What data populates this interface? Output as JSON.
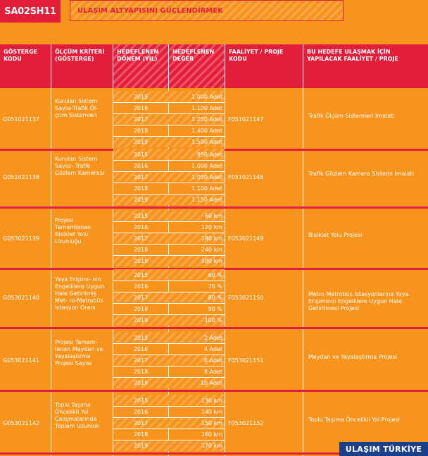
{
  "header": {
    "code": "SA02SH11",
    "title": "ULAŞIM ALTYAPISINI GÜÇLENDİRMEK"
  },
  "columns": {
    "col1": "GÖSTERGE KODU",
    "col2": "ÖLÇÜM KRİTERİ (GÖSTERGE)",
    "col3": "HEDEFLENEN DÖNEM (YIL)",
    "col4": "HEDEFLENEN DEĞER",
    "col5": "FAALİYET / PROJE KODU",
    "col6": "BU HEDEFE ULAŞMAK İÇİN YAPILACAK FAALİYET / PROJE"
  },
  "groups": [
    {
      "code": "G051021137",
      "criterion": "Kurulan Sistem Sayısı-Trafik Öl- çüm Sistemleri",
      "activity_code": "F051021147",
      "activity": "Trafik Ölçüm Sistemleri İmalatı",
      "rows": [
        {
          "year": "2015",
          "value": "1.000 Adet"
        },
        {
          "year": "2016",
          "value": "1.100 Adet"
        },
        {
          "year": "2017",
          "value": "1.250 Adet"
        },
        {
          "year": "2018",
          "value": "1.400 Adet"
        },
        {
          "year": "2019",
          "value": "1.500 Adet"
        }
      ]
    },
    {
      "code": "G051021138",
      "criterion": "Kurulan Sistem Sayısı- Trafik Gözlem Kamerası",
      "activity_code": "F051021148",
      "activity": "Trafik Gözlem Kamera Sistemi İmalatı",
      "rows": [
        {
          "year": "2015",
          "value": "950 Adet"
        },
        {
          "year": "2016",
          "value": "1.000 Adet"
        },
        {
          "year": "2017",
          "value": "1.050 Adet"
        },
        {
          "year": "2018",
          "value": "1.100 Adet"
        },
        {
          "year": "2019",
          "value": "1.150 Adet"
        }
      ]
    },
    {
      "code": "G053021139",
      "criterion": "Projesi Tamamlanan Bisiklet Yolu Uzunluğu",
      "activity_code": "F053021149",
      "activity": "Bisiklet Yolu Projesi",
      "rows": [
        {
          "year": "2015",
          "value": "60 km"
        },
        {
          "year": "2016",
          "value": "120 km"
        },
        {
          "year": "2017",
          "value": "180 km"
        },
        {
          "year": "2018",
          "value": "240 km"
        },
        {
          "year": "2019",
          "value": "300 km"
        }
      ]
    },
    {
      "code": "G053021140",
      "criterion": "Yaya Erişimi- nin Engellilere Uygun Hale Getirilmiş Met- ro-Metrobüs İstasyon Oranı",
      "activity_code": "F053021150",
      "activity": "Metro Metrobüs İstasyonlarına Yaya Erişiminin Engellilere Uygun Hale Getirilmesi Projesi",
      "rows": [
        {
          "year": "2015",
          "value": "60 %"
        },
        {
          "year": "2016",
          "value": "70 %"
        },
        {
          "year": "2017",
          "value": "80 %"
        },
        {
          "year": "2018",
          "value": "90 %"
        },
        {
          "year": "2019",
          "value": "100 %"
        }
      ]
    },
    {
      "code": "G053021141",
      "criterion": "Projesi Tamam- lanan Meydan ve Yayalaştırma Projesi Sayısı",
      "activity_code": "F053021151",
      "activity": "Meydan ve Yayalaştırma Projesi",
      "rows": [
        {
          "year": "2015",
          "value": "2 Adet"
        },
        {
          "year": "2016",
          "value": "4 Adet"
        },
        {
          "year": "2017",
          "value": "6 Adet"
        },
        {
          "year": "2018",
          "value": "8 Adet"
        },
        {
          "year": "2019",
          "value": "10 Adet"
        }
      ]
    },
    {
      "code": "G053021142",
      "criterion": "Toplu Taşıma Öncelikli Yol Çalışmalarında Toplam Uzunluk",
      "activity_code": "F053021152",
      "activity": "Toplu Taşıma Öncelikli Yol Projesi",
      "rows": [
        {
          "year": "2015",
          "value": "130 km"
        },
        {
          "year": "2016",
          "value": "140 km"
        },
        {
          "year": "2017",
          "value": "150 km"
        },
        {
          "year": "2018",
          "value": "160 km"
        },
        {
          "year": "2019",
          "value": "170 km"
        }
      ]
    }
  ],
  "footer": {
    "brand": "ULAŞIM TÜRKİYE"
  }
}
